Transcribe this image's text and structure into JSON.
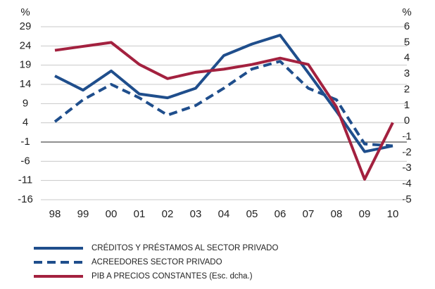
{
  "chart_data": {
    "type": "line",
    "y_unit": "%",
    "y2_unit": "%",
    "categories": [
      "98",
      "99",
      "00",
      "01",
      "02",
      "03",
      "04",
      "05",
      "06",
      "07",
      "08",
      "09",
      "10"
    ],
    "ylim": [
      -16,
      29
    ],
    "yticks": [
      29,
      24,
      19,
      14,
      9,
      4,
      -1,
      -6,
      -11,
      -16
    ],
    "y2lim": [
      -5,
      6
    ],
    "y2ticks": [
      6,
      5,
      4,
      3,
      2,
      1,
      0,
      -1,
      -2,
      -3,
      -4,
      -5
    ],
    "grid": true,
    "series": [
      {
        "name": "CRÉDITOS Y PRÉSTAMOS AL SECTOR PRIVADO",
        "color": "#1f4e8c",
        "dash": false,
        "values": [
          16.2,
          12.5,
          17.5,
          11.5,
          10.5,
          13,
          21.5,
          24.5,
          26.8,
          17,
          7,
          -3.5,
          -2
        ]
      },
      {
        "name": "ACREEDORES SECTOR PRIVADO",
        "color": "#1f4e8c",
        "dash": true,
        "values": [
          4.3,
          10,
          14,
          10.5,
          6,
          8.5,
          13,
          18,
          20,
          13,
          10,
          -1.5,
          -2
        ]
      },
      {
        "name": "PIB A PRECIOS CONSTANTES (Esc. dcha.)",
        "color": "#a3213f",
        "dash": false,
        "axis": "y2",
        "values": [
          4.5,
          4.75,
          5.0,
          3.6,
          2.7,
          3.1,
          3.3,
          3.6,
          4.0,
          3.6,
          0.9,
          -3.7,
          -0.1
        ]
      }
    ]
  }
}
